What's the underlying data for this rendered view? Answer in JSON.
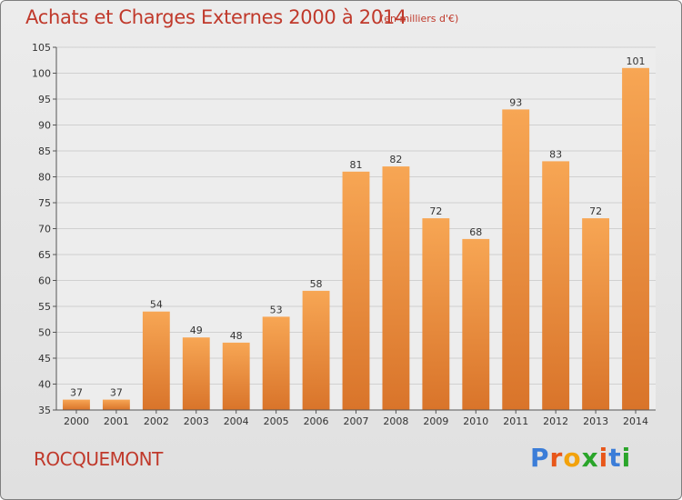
{
  "header": {
    "title": "Achats et Charges Externes 2000 à 2014",
    "unit": "(en milliers d'€)"
  },
  "footer": {
    "commune": "ROCQUEMONT",
    "logo_letters": [
      "P",
      "r",
      "o",
      "x",
      "i",
      "t",
      "i"
    ]
  },
  "colors": {
    "title": "#c0392b",
    "bar_light": "#f7a654",
    "bar_dark": "#d9742a",
    "logo": [
      "#3b7dd8",
      "#e8571a",
      "#f2a20c",
      "#2aa52a",
      "#e8571a",
      "#3b7dd8",
      "#2aa52a"
    ]
  },
  "chart_data": {
    "type": "bar",
    "title": "Achats et Charges Externes 2000 à 2014",
    "categories": [
      "2000",
      "2001",
      "2002",
      "2003",
      "2004",
      "2005",
      "2006",
      "2007",
      "2008",
      "2009",
      "2010",
      "2011",
      "2012",
      "2013",
      "2014"
    ],
    "values": [
      37,
      37,
      54,
      49,
      48,
      53,
      58,
      81,
      82,
      72,
      68,
      93,
      83,
      72,
      101
    ],
    "ylim": [
      35,
      105
    ],
    "yticks": [
      35,
      40,
      45,
      50,
      55,
      60,
      65,
      70,
      75,
      80,
      85,
      90,
      95,
      100,
      105
    ],
    "grid": true,
    "xlabel": "",
    "ylabel": ""
  }
}
